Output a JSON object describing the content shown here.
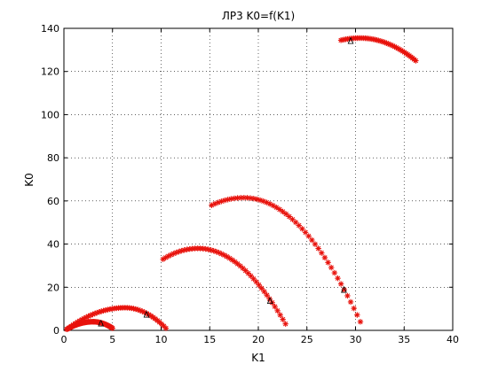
{
  "chart_data": {
    "type": "scatter",
    "title": "ЛР3 K0=f(K1)",
    "xlabel": "K1",
    "ylabel": "K0",
    "xlim": [
      0,
      40
    ],
    "ylim": [
      0,
      140
    ],
    "xticks": [
      0,
      5,
      10,
      15,
      20,
      25,
      30,
      35,
      40
    ],
    "yticks": [
      0,
      20,
      40,
      60,
      80,
      100,
      120,
      140
    ],
    "grid": "dotted",
    "marker": "*",
    "marker_color": "#e8120c",
    "series": [
      {
        "arc": {
          "x_start": 0.3,
          "x_end": 5.0,
          "x_peak": 3.0,
          "y_start": 0.5,
          "y_peak": 4.0,
          "y_end": 1.0
        }
      },
      {
        "arc": {
          "x_start": 0.3,
          "x_end": 10.5,
          "x_peak": 6.3,
          "y_start": 0.5,
          "y_peak": 10.5,
          "y_end": 1.0
        }
      },
      {
        "arc": {
          "x_start": 10.2,
          "x_end": 22.8,
          "x_peak": 13.8,
          "y_start": 33.0,
          "y_peak": 38.0,
          "y_end": 3.0
        }
      },
      {
        "arc": {
          "x_start": 15.2,
          "x_end": 30.5,
          "x_peak": 18.5,
          "y_start": 58.0,
          "y_peak": 61.5,
          "y_end": 4.0
        }
      },
      {
        "arc": {
          "x_start": 28.5,
          "x_end": 36.2,
          "x_peak": 30.5,
          "y_start": 134.5,
          "y_peak": 135.5,
          "y_end": 125.0
        }
      }
    ],
    "annotations": [
      {
        "text": "Δ",
        "x": 3.8,
        "y": 3.5
      },
      {
        "text": "Δ",
        "x": 8.5,
        "y": 7.5
      },
      {
        "text": "Δ",
        "x": 21.2,
        "y": 14.0
      },
      {
        "text": "Δ",
        "x": 28.8,
        "y": 19.0
      },
      {
        "text": "Δ",
        "x": 29.5,
        "y": 134.5
      }
    ]
  }
}
